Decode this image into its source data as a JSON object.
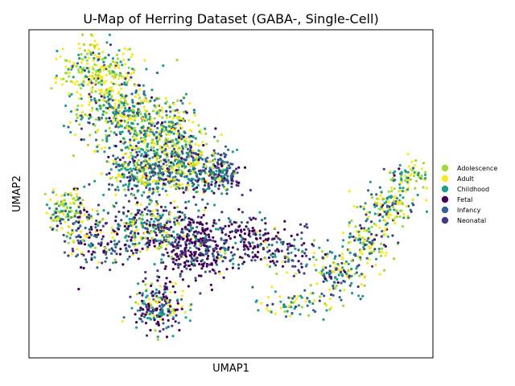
{
  "chart_data": {
    "type": "scatter",
    "title": "U-Map of Herring Dataset (GABA-, Single-Cell)",
    "xlabel": "UMAP1",
    "ylabel": "UMAP2",
    "xticks": "hidden",
    "yticks": "hidden",
    "grid": false,
    "legend_position": "right-outside",
    "series": [
      {
        "name": "Adolescence",
        "color": "#a0da39"
      },
      {
        "name": "Adult",
        "color": "#fde725"
      },
      {
        "name": "Childhood",
        "color": "#1f9e89"
      },
      {
        "name": "Fetal",
        "color": "#440154"
      },
      {
        "name": "Infancy",
        "color": "#31688e"
      },
      {
        "name": "Neonatal",
        "color": "#443983"
      }
    ],
    "regions": [
      {
        "cx": 0.17,
        "cy": 0.87,
        "rx": 0.08,
        "ry": 0.08,
        "n": 260,
        "weights": [
          0.32,
          0.42,
          0.16,
          0.02,
          0.04,
          0.04
        ]
      },
      {
        "cx": 0.22,
        "cy": 0.75,
        "rx": 0.1,
        "ry": 0.09,
        "n": 320,
        "weights": [
          0.22,
          0.28,
          0.3,
          0.03,
          0.1,
          0.07
        ]
      },
      {
        "cx": 0.33,
        "cy": 0.68,
        "rx": 0.1,
        "ry": 0.09,
        "n": 360,
        "weights": [
          0.18,
          0.28,
          0.3,
          0.04,
          0.1,
          0.1
        ]
      },
      {
        "cx": 0.29,
        "cy": 0.57,
        "rx": 0.09,
        "ry": 0.08,
        "n": 320,
        "weights": [
          0.12,
          0.2,
          0.28,
          0.06,
          0.18,
          0.16
        ]
      },
      {
        "cx": 0.41,
        "cy": 0.57,
        "rx": 0.07,
        "ry": 0.08,
        "n": 280,
        "weights": [
          0.12,
          0.22,
          0.28,
          0.06,
          0.18,
          0.14
        ]
      },
      {
        "cx": 0.48,
        "cy": 0.56,
        "rx": 0.04,
        "ry": 0.06,
        "n": 120,
        "weights": [
          0.03,
          0.06,
          0.12,
          0.22,
          0.27,
          0.3
        ]
      },
      {
        "cx": 0.09,
        "cy": 0.45,
        "rx": 0.05,
        "ry": 0.06,
        "n": 130,
        "weights": [
          0.25,
          0.3,
          0.25,
          0.04,
          0.1,
          0.06
        ]
      },
      {
        "cx": 0.17,
        "cy": 0.36,
        "rx": 0.08,
        "ry": 0.08,
        "n": 180,
        "weights": [
          0.06,
          0.08,
          0.12,
          0.3,
          0.22,
          0.22
        ]
      },
      {
        "cx": 0.3,
        "cy": 0.4,
        "rx": 0.08,
        "ry": 0.08,
        "n": 260,
        "weights": [
          0.1,
          0.14,
          0.24,
          0.2,
          0.18,
          0.14
        ]
      },
      {
        "cx": 0.42,
        "cy": 0.34,
        "rx": 0.09,
        "ry": 0.09,
        "n": 380,
        "weights": [
          0.02,
          0.03,
          0.08,
          0.55,
          0.12,
          0.2
        ]
      },
      {
        "cx": 0.32,
        "cy": 0.16,
        "rx": 0.06,
        "ry": 0.07,
        "n": 220,
        "weights": [
          0.1,
          0.16,
          0.18,
          0.3,
          0.14,
          0.12
        ]
      },
      {
        "cx": 0.55,
        "cy": 0.36,
        "rx": 0.06,
        "ry": 0.07,
        "n": 110,
        "weights": [
          0.02,
          0.02,
          0.06,
          0.45,
          0.15,
          0.3
        ]
      },
      {
        "cx": 0.64,
        "cy": 0.32,
        "rx": 0.07,
        "ry": 0.07,
        "n": 90,
        "weights": [
          0.06,
          0.06,
          0.12,
          0.3,
          0.16,
          0.3
        ]
      },
      {
        "cx": 0.65,
        "cy": 0.16,
        "rx": 0.08,
        "ry": 0.04,
        "n": 70,
        "weights": [
          0.2,
          0.28,
          0.3,
          0.02,
          0.12,
          0.08
        ]
      },
      {
        "cx": 0.77,
        "cy": 0.26,
        "rx": 0.07,
        "ry": 0.07,
        "n": 140,
        "weights": [
          0.14,
          0.18,
          0.28,
          0.06,
          0.22,
          0.12
        ]
      },
      {
        "cx": 0.84,
        "cy": 0.36,
        "rx": 0.05,
        "ry": 0.07,
        "n": 120,
        "weights": [
          0.24,
          0.28,
          0.24,
          0.02,
          0.12,
          0.1
        ]
      },
      {
        "cx": 0.9,
        "cy": 0.47,
        "rx": 0.06,
        "ry": 0.06,
        "n": 130,
        "weights": [
          0.3,
          0.26,
          0.22,
          0.02,
          0.12,
          0.08
        ]
      },
      {
        "cx": 0.94,
        "cy": 0.55,
        "rx": 0.04,
        "ry": 0.04,
        "n": 70,
        "weights": [
          0.26,
          0.3,
          0.34,
          0.01,
          0.06,
          0.03
        ]
      }
    ]
  }
}
